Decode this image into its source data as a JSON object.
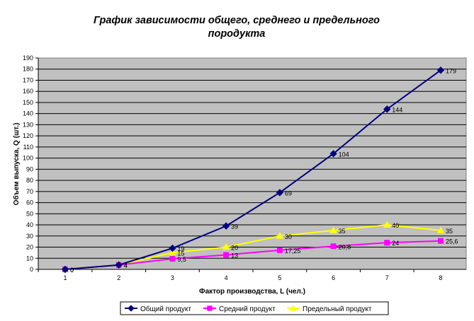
{
  "chart_data": {
    "type": "line",
    "title_lines": [
      "График зависимости общего, среднего и предельного",
      "породукта"
    ],
    "xlabel": "Фактор производства, L (чел.)",
    "ylabel": "Объем выпуска, Q (шт.)",
    "x": [
      1,
      2,
      3,
      4,
      5,
      6,
      7,
      8
    ],
    "ylim": [
      0,
      190
    ],
    "yticks": [
      0,
      10,
      20,
      30,
      40,
      50,
      60,
      70,
      80,
      90,
      100,
      110,
      120,
      130,
      140,
      150,
      160,
      170,
      180,
      190
    ],
    "grid": true,
    "legend_position": "bottom",
    "plot_background": "#c0c0c0",
    "series": [
      {
        "name": "Общий продукт",
        "color": "#000080",
        "marker": "diamond",
        "values": [
          0,
          4,
          19,
          39,
          69,
          104,
          144,
          179
        ],
        "labels": [
          "0",
          "4",
          "19",
          "39",
          "69",
          "104",
          "144",
          "179"
        ]
      },
      {
        "name": "Средний продукт",
        "color": "#ff00ff",
        "marker": "square",
        "values": [
          0,
          4,
          9.5,
          13,
          17.25,
          20.8,
          24,
          25.6
        ],
        "labels": [
          "0",
          "4",
          "9,5",
          "13",
          "17,25",
          "20,8",
          "24",
          "25,6"
        ]
      },
      {
        "name": "Предельный продукт",
        "color": "#ffff00",
        "marker": "triangle",
        "values": [
          0,
          4,
          15,
          20,
          30,
          35,
          40,
          35
        ],
        "labels": [
          "0",
          "4",
          "15",
          "20",
          "30",
          "35",
          "40",
          "35"
        ]
      }
    ]
  }
}
